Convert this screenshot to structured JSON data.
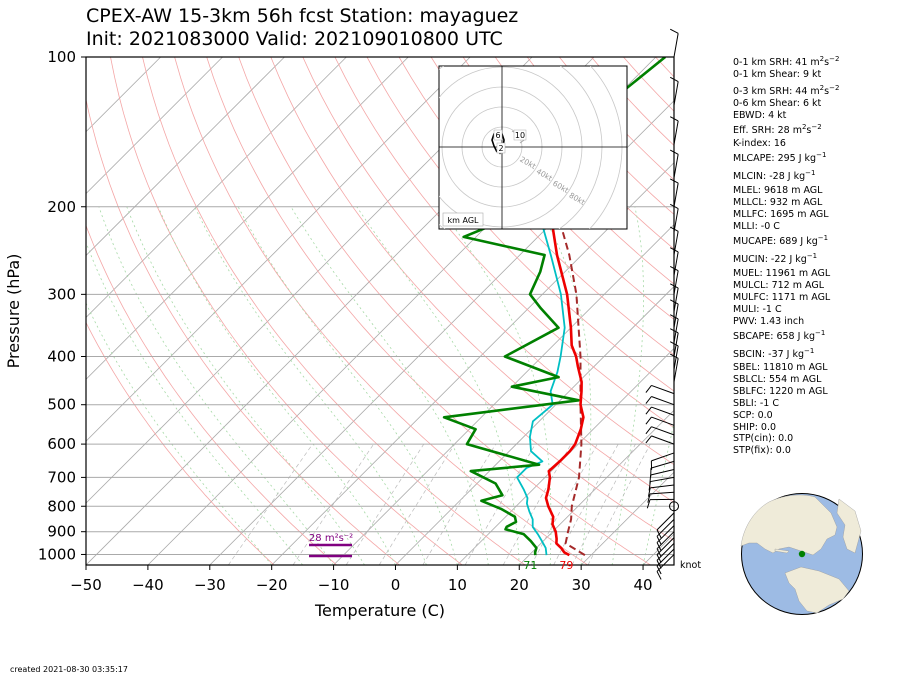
{
  "header": {
    "title_line1": "CPEX-AW 15-3km  56h fcst  Station: mayaguez",
    "title_line2": "Init: 2021083000  Valid: 202109010800 UTC"
  },
  "chart_data": {
    "type": "skew-t log-p",
    "xlabel": "Temperature (C)",
    "ylabel": "Pressure (hPa)",
    "xlim": [
      -50,
      45
    ],
    "ylim": [
      1050,
      100
    ],
    "yscale": "log",
    "x_ticks": [
      -50,
      -40,
      -30,
      -20,
      -10,
      0,
      10,
      20,
      30,
      40
    ],
    "x_tick_labels": [
      "−50",
      "−40",
      "−30",
      "−20",
      "−10",
      "0",
      "10",
      "20",
      "30",
      "40"
    ],
    "y_ticks": [
      100,
      200,
      300,
      400,
      500,
      600,
      700,
      800,
      900,
      1000
    ],
    "y_tick_labels": [
      "100",
      "200",
      "300",
      "400",
      "500",
      "600",
      "700",
      "800",
      "900",
      "1000"
    ],
    "colors": {
      "temperature": "#ee0000",
      "dewpoint": "#008000",
      "wetbulb": "#00bfc4",
      "parcel": "#a52a2a",
      "srh": "#800080"
    },
    "series": [
      {
        "role": "temperature",
        "points": [
          [
            1003,
            26.5
          ],
          [
            990,
            25.2
          ],
          [
            970,
            24.0
          ],
          [
            950,
            22.5
          ],
          [
            930,
            21.8
          ],
          [
            900,
            20.5
          ],
          [
            870,
            18.8
          ],
          [
            840,
            17.7
          ],
          [
            800,
            15.2
          ],
          [
            770,
            13.5
          ],
          [
            740,
            12.5
          ],
          [
            700,
            10.8
          ],
          [
            680,
            9.6
          ],
          [
            650,
            9.8
          ],
          [
            620,
            9.8
          ],
          [
            600,
            9.5
          ],
          [
            560,
            8.0
          ],
          [
            530,
            6.5
          ],
          [
            500,
            4.0
          ],
          [
            470,
            2.0
          ],
          [
            450,
            0.5
          ],
          [
            420,
            -2.5
          ],
          [
            400,
            -4.5
          ],
          [
            380,
            -7.0
          ],
          [
            350,
            -10.0
          ],
          [
            300,
            -16.0
          ],
          [
            250,
            -24.0
          ],
          [
            200,
            -33.0
          ],
          [
            160,
            -43.0
          ],
          [
            130,
            -50.0
          ]
        ]
      },
      {
        "role": "dewpoint",
        "points": [
          [
            1003,
            21.0
          ],
          [
            990,
            20.5
          ],
          [
            970,
            20.0
          ],
          [
            940,
            18.0
          ],
          [
            910,
            15.7
          ],
          [
            890,
            12.0
          ],
          [
            880,
            11.8
          ],
          [
            860,
            12.5
          ],
          [
            840,
            11.5
          ],
          [
            810,
            8.0
          ],
          [
            780,
            3.5
          ],
          [
            760,
            6.0
          ],
          [
            720,
            3.0
          ],
          [
            680,
            -3.0
          ],
          [
            660,
            7.0
          ],
          [
            600,
            -8.0
          ],
          [
            560,
            -9.0
          ],
          [
            530,
            -16.0
          ],
          [
            490,
            3.0
          ],
          [
            460,
            -10.0
          ],
          [
            440,
            -4.0
          ],
          [
            400,
            -16.0
          ],
          [
            350,
            -12.0
          ],
          [
            320,
            -18.0
          ],
          [
            300,
            -22.0
          ],
          [
            270,
            -24.0
          ],
          [
            250,
            -26.0
          ],
          [
            230,
            -42.0
          ],
          [
            200,
            -35.0
          ],
          [
            170,
            -37.0
          ],
          [
            140,
            -39.0
          ],
          [
            120,
            -40.0
          ],
          [
            100,
            -38.5
          ]
        ]
      },
      {
        "role": "wetbulb",
        "points": [
          [
            1003,
            22.8
          ],
          [
            970,
            21.5
          ],
          [
            940,
            19.8
          ],
          [
            910,
            18.0
          ],
          [
            880,
            16.0
          ],
          [
            850,
            14.8
          ],
          [
            820,
            13.0
          ],
          [
            790,
            11.3
          ],
          [
            770,
            10.5
          ],
          [
            740,
            8.5
          ],
          [
            700,
            5.5
          ],
          [
            670,
            5.5
          ],
          [
            650,
            7.0
          ],
          [
            620,
            3.5
          ],
          [
            580,
            1.0
          ],
          [
            540,
            -1.0
          ],
          [
            500,
            -0.5
          ],
          [
            470,
            -3.0
          ],
          [
            430,
            -5.0
          ],
          [
            400,
            -7.0
          ],
          [
            350,
            -11.0
          ],
          [
            300,
            -17.0
          ],
          [
            250,
            -25.0
          ],
          [
            200,
            -35.0
          ],
          [
            160,
            -44.0
          ],
          [
            130,
            -50.0
          ]
        ]
      },
      {
        "role": "parcel",
        "points": [
          [
            1003,
            29.0
          ],
          [
            950,
            24.0
          ],
          [
            900,
            22.5
          ],
          [
            850,
            21.0
          ],
          [
            800,
            19.0
          ],
          [
            700,
            15.5
          ],
          [
            600,
            10.5
          ],
          [
            500,
            4.0
          ],
          [
            400,
            -3.8
          ],
          [
            300,
            -14.5
          ],
          [
            250,
            -22.0
          ],
          [
            200,
            -32.0
          ],
          [
            150,
            -47.0
          ],
          [
            120,
            -57.0
          ],
          [
            110,
            -58.0
          ]
        ]
      }
    ],
    "surface_labels": {
      "dewpoint": "71",
      "temperature": "79"
    },
    "srh_label": "28 m²s⁻²",
    "wind_unit": "knot",
    "hodograph": {
      "rings": [
        "20kt",
        "40kt",
        "60kt",
        "80kt"
      ],
      "legend": "km AGL",
      "markers": [
        "2",
        "6",
        "10"
      ]
    }
  },
  "indices": [
    {
      "text": "0-1 km SRH: 41 m",
      "sup": "2",
      "text2": "s",
      "sup2": "−2"
    },
    {
      "text": "0-1 km Shear: 9 kt"
    },
    {
      "text": "0-3 km SRH: 44 m",
      "sup": "2",
      "text2": "s",
      "sup2": "−2"
    },
    {
      "text": "0-6 km Shear: 6 kt"
    },
    {
      "text": "EBWD: 4 kt"
    },
    {
      "text": "Eff. SRH: 28 m",
      "sup": "2",
      "text2": "s",
      "sup2": "−2"
    },
    {
      "text": "K-index: 16"
    },
    {
      "text": "MLCAPE: 295 J kg",
      "sup": "−1"
    },
    {
      "text": "MLCIN: -28 J kg",
      "sup": "−1"
    },
    {
      "text": "MLEL: 9618 m AGL"
    },
    {
      "text": "MLLCL: 932 m AGL"
    },
    {
      "text": "MLLFC: 1695 m AGL"
    },
    {
      "text": "MLLI: -0 C"
    },
    {
      "text": "MUCAPE: 689 J kg",
      "sup": "−1"
    },
    {
      "text": "MUCIN: -22 J kg",
      "sup": "−1"
    },
    {
      "text": "MUEL: 11961 m AGL"
    },
    {
      "text": "MULCL: 712 m AGL"
    },
    {
      "text": "MULFC: 1171 m AGL"
    },
    {
      "text": "MULI: -1 C"
    },
    {
      "text": "PWV: 1.43 inch"
    },
    {
      "text": "SBCAPE: 658 J kg",
      "sup": "−1"
    },
    {
      "text": "SBCIN: -37 J kg",
      "sup": "−1"
    },
    {
      "text": "SBEL: 11810 m AGL"
    },
    {
      "text": "SBLCL: 554 m AGL"
    },
    {
      "text": "SBLFC: 1220 m AGL"
    },
    {
      "text": "SBLI: -1 C"
    },
    {
      "text": "SCP: 0.0"
    },
    {
      "text": "SHIP: 0.0"
    },
    {
      "text": "STP(cin): 0.0"
    },
    {
      "text": "STP(fix): 0.0"
    }
  ],
  "footer": {
    "created": "created 2021-08-30 03:35:17"
  }
}
